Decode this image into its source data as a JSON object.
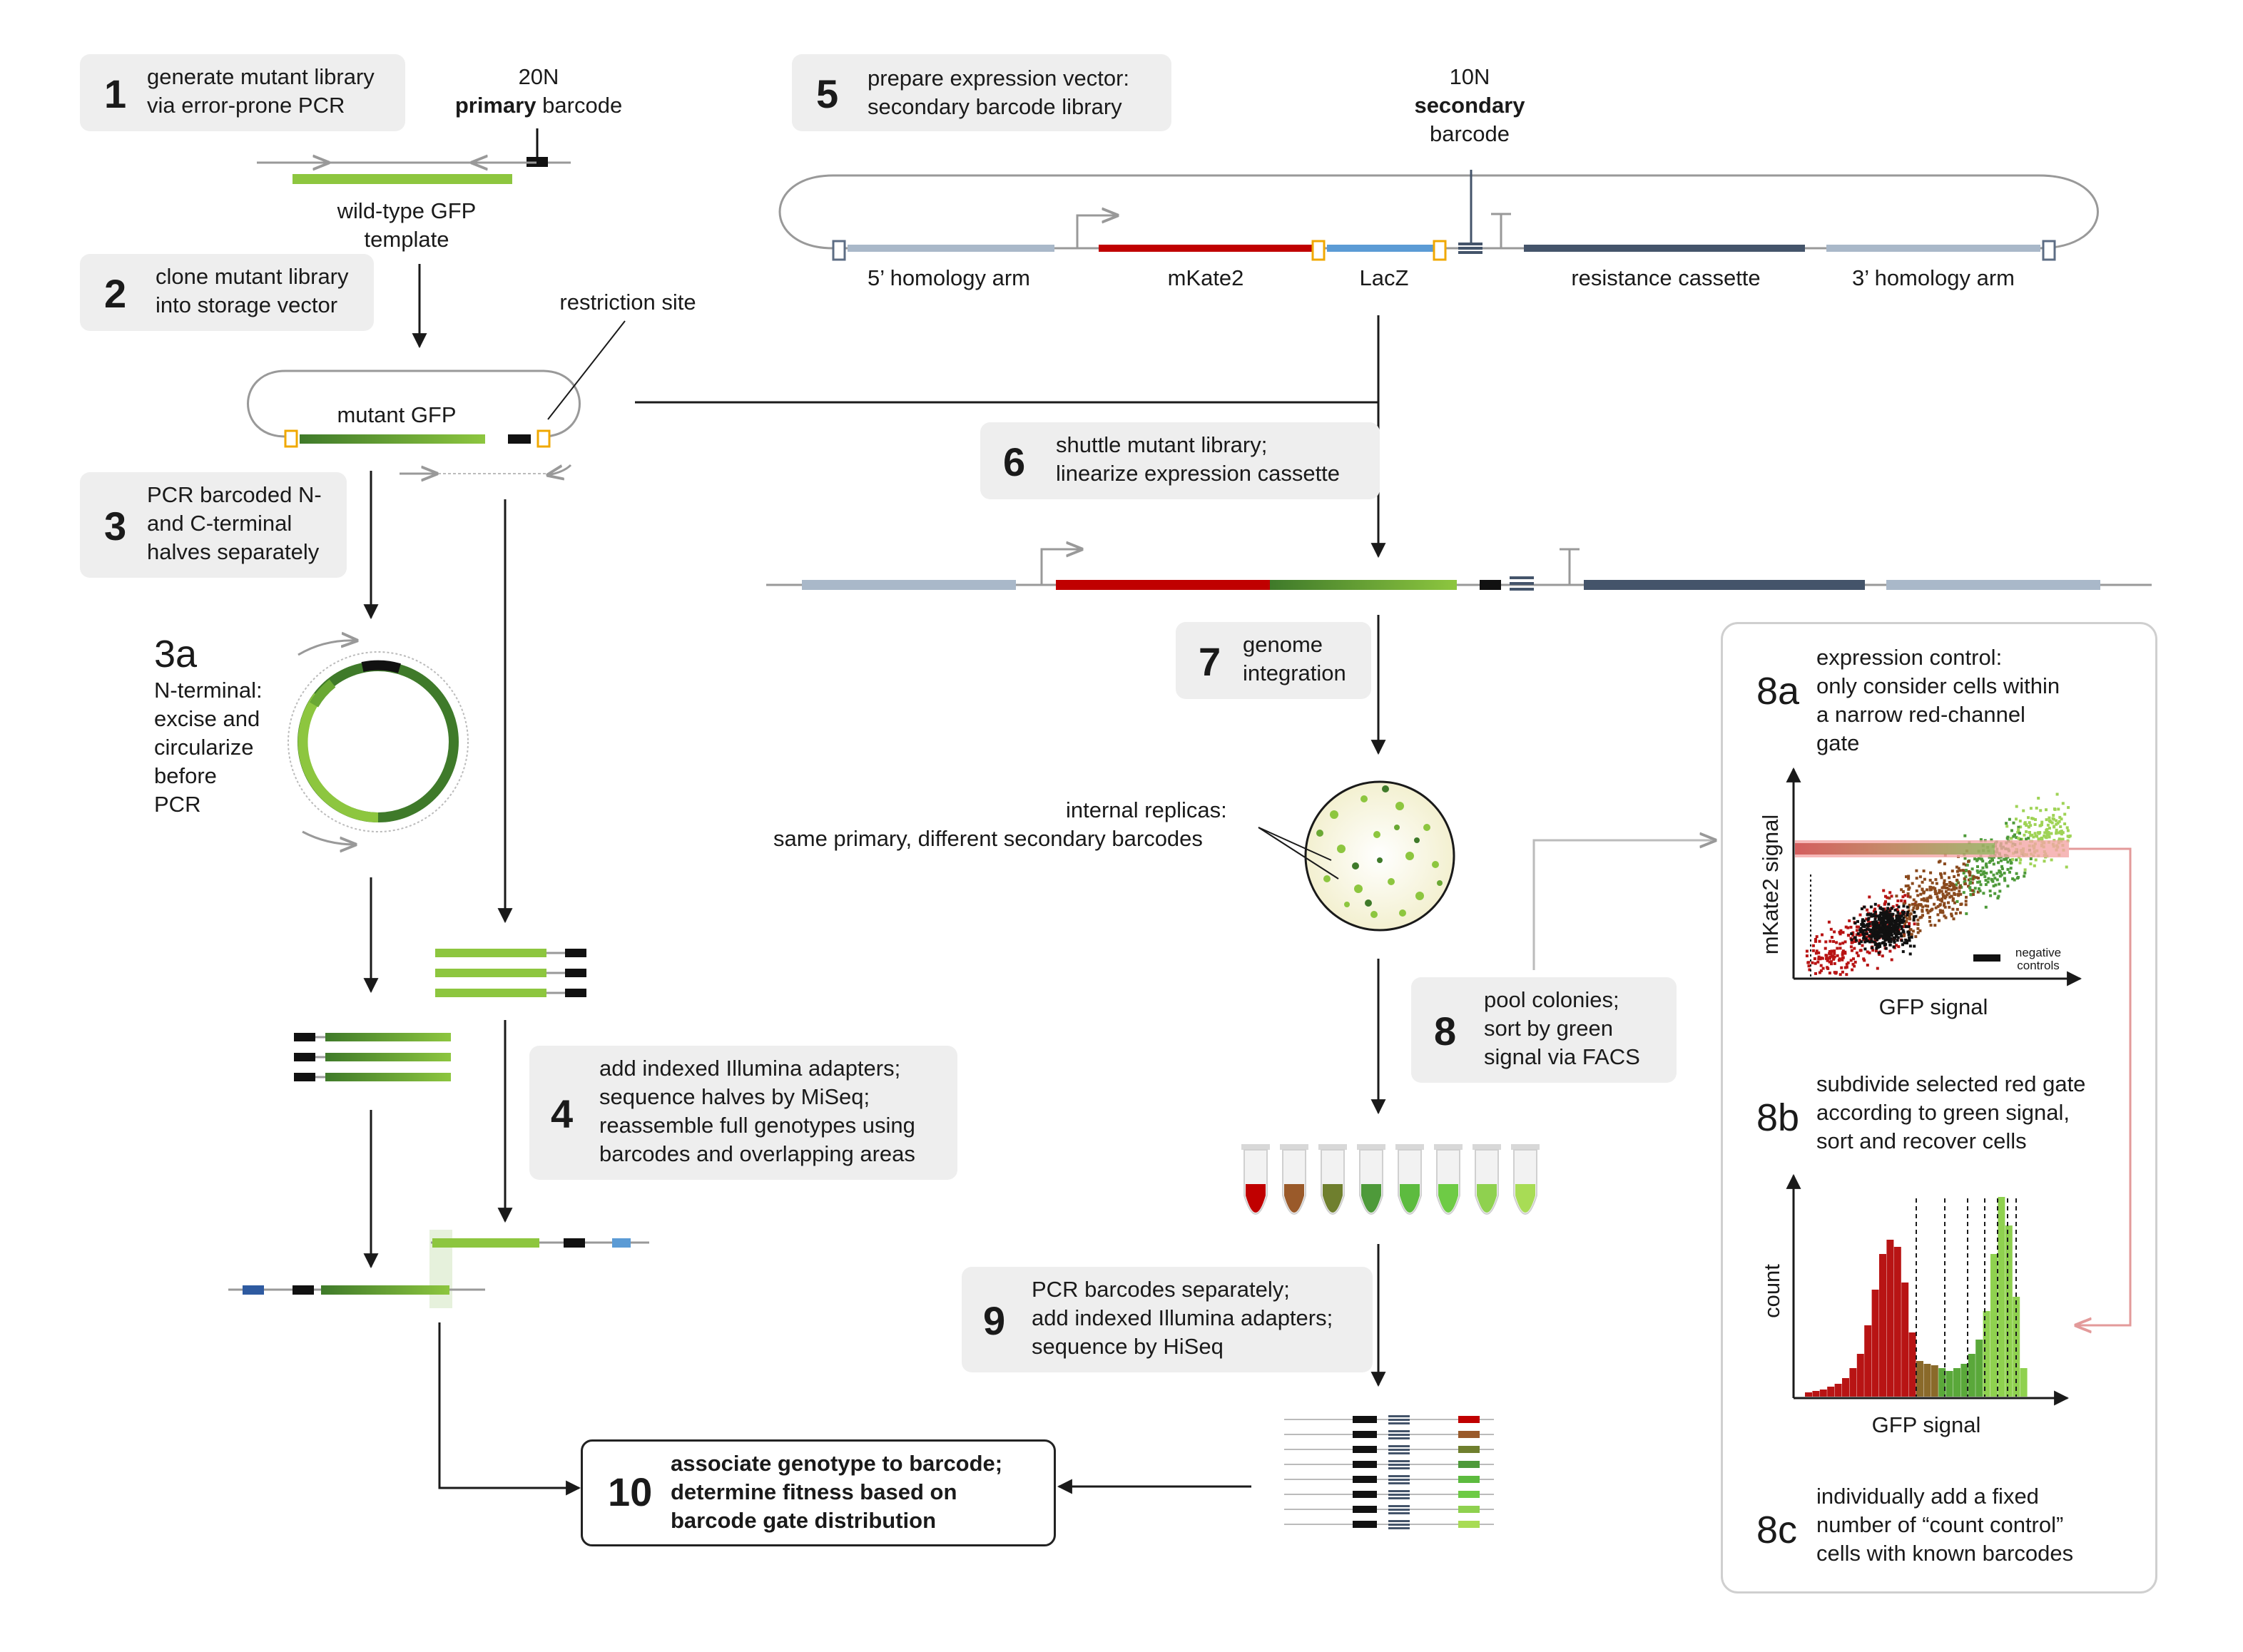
{
  "steps": {
    "s1": {
      "num": "1",
      "line1": "generate mutant library",
      "line2": "via error-prone PCR"
    },
    "s2": {
      "num": "2",
      "line1": "clone mutant library",
      "line2": "into storage vector"
    },
    "s3": {
      "num": "3",
      "line1": "PCR barcoded N-",
      "line2": "and C-terminal",
      "line3": "halves separately"
    },
    "s3a": {
      "num": "3a",
      "line1": "N-terminal:",
      "line2": "excise and",
      "line3": "circularize",
      "line4": "before",
      "line5": "PCR"
    },
    "s4": {
      "num": "4",
      "line1": "add indexed Illumina adapters;",
      "line2": "sequence halves by MiSeq;",
      "line3": "reassemble full genotypes using",
      "line4": "barcodes and overlapping areas"
    },
    "s5": {
      "num": "5",
      "line1": "prepare expression vector:",
      "line2": "secondary barcode library"
    },
    "s6": {
      "num": "6",
      "line1": "shuttle mutant library;",
      "line2": "linearize expression cassette"
    },
    "s7": {
      "num": "7",
      "line1": "genome",
      "line2": "integration"
    },
    "s8": {
      "num": "8",
      "line1": "pool colonies;",
      "line2": "sort by green",
      "line3": "signal via FACS"
    },
    "s9": {
      "num": "9",
      "line1": "PCR barcodes separately;",
      "line2": "add indexed Illumina adapters;",
      "line3": "sequence by HiSeq"
    },
    "s10": {
      "num": "10",
      "line1": "associate genotype to barcode;",
      "line2": "determine fitness based on",
      "line3": "barcode gate distribution"
    },
    "s8a": {
      "num": "8a",
      "line1": "expression control:",
      "line2": "only consider cells within",
      "line3": "a narrow red-channel",
      "line4": "gate"
    },
    "s8b": {
      "num": "8b",
      "line1": "subdivide selected red gate",
      "line2": "according to green signal,",
      "line3": "sort and recover cells"
    },
    "s8c": {
      "num": "8c",
      "line1": "individually add a fixed",
      "line2": "number of “count control”",
      "line3": "cells with known barcodes"
    }
  },
  "labels": {
    "primary_top": "20N",
    "primary_bold": "primary",
    "primary_rest": " barcode",
    "template1": "wild-type GFP",
    "template2": "template",
    "restriction_site": "restriction site",
    "mutant_gfp": "mutant GFP",
    "secondary_top": "10N",
    "secondary_bold": "secondary",
    "secondary_bottom": "barcode",
    "homology5": "5’ homology arm",
    "mkate2": "mKate2",
    "lacz": "LacZ",
    "resistance": "resistance cassette",
    "homology3": "3’ homology arm",
    "replicas1": "internal replicas:",
    "replicas2": "same primary, different secondary barcodes",
    "scatter_y": "mKate2 signal",
    "scatter_x": "GFP signal",
    "neg_controls1": "negative",
    "neg_controls2": "controls",
    "hist_y": "count",
    "hist_x": "GFP signal"
  },
  "colors": {
    "gfp_light": "#8dc63f",
    "gfp_dark": "#3f7a2a",
    "mkate_red": "#c00000",
    "lacz_blue": "#5b9bd5",
    "homology_gray": "#a9b8c9",
    "resistance_navy": "#44546a",
    "step_box": "#eeeeee",
    "gate_pink": "#f4a6a6",
    "tube_colors": [
      "#c00000",
      "#9a5a2a",
      "#6f7f2e",
      "#4e9a3a",
      "#5dbb3f",
      "#6ecb45",
      "#8fd14f",
      "#a8dc55"
    ]
  },
  "icons": [
    "arrow-icon",
    "promoter-icon",
    "terminator-icon",
    "petri-dish-icon",
    "tube-icon"
  ]
}
